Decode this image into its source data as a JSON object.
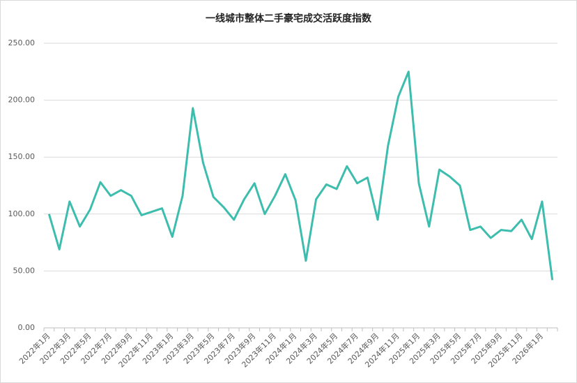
{
  "chart_data": {
    "type": "line",
    "title": "一线城市整体二手豪宅成交活跃度指数",
    "categories": [
      "2022年1月",
      null,
      "2022年3月",
      null,
      "2022年5月",
      null,
      "2022年7月",
      null,
      "2022年9月",
      null,
      "2022年11月",
      null,
      "2023年1月",
      null,
      "2023年3月",
      null,
      "2023年5月",
      null,
      "2023年7月",
      null,
      "2023年9月",
      null,
      "2023年11月",
      null,
      "2024年1月",
      null,
      "2024年3月",
      null,
      "2024年5月",
      null,
      "2024年7月",
      null,
      "2024年9月",
      null,
      "2024年11月",
      null,
      "2025年1月",
      null,
      "2025年3月",
      null,
      "2025年5月",
      null,
      "2025年7月",
      null,
      "2025年9月",
      null,
      "2025年11月",
      null,
      "2026年1月",
      null
    ],
    "series": [
      {
        "name": "一线城市整体二手豪宅成交活跃度指数",
        "color": "#3dbdad",
        "values": [
          100,
          69,
          111,
          89,
          104,
          128,
          116,
          121,
          116,
          99,
          102,
          105,
          80,
          116,
          193,
          145,
          115,
          106,
          95,
          113,
          127,
          100,
          116,
          135,
          112,
          59,
          113,
          126,
          122,
          142,
          127,
          132,
          95,
          160,
          203,
          225,
          127,
          89,
          139,
          133,
          125,
          86,
          89,
          79,
          86,
          85,
          95,
          78,
          111,
          42
        ]
      }
    ],
    "ylim": [
      0,
      250
    ],
    "yticks": [
      {
        "value": 0,
        "label": "0.00"
      },
      {
        "value": 50,
        "label": "50.00"
      },
      {
        "value": 100,
        "label": "100.00"
      },
      {
        "value": 150,
        "label": "150.00"
      },
      {
        "value": 200,
        "label": "200.00"
      },
      {
        "value": 250,
        "label": "250.00"
      }
    ],
    "grid": true
  }
}
